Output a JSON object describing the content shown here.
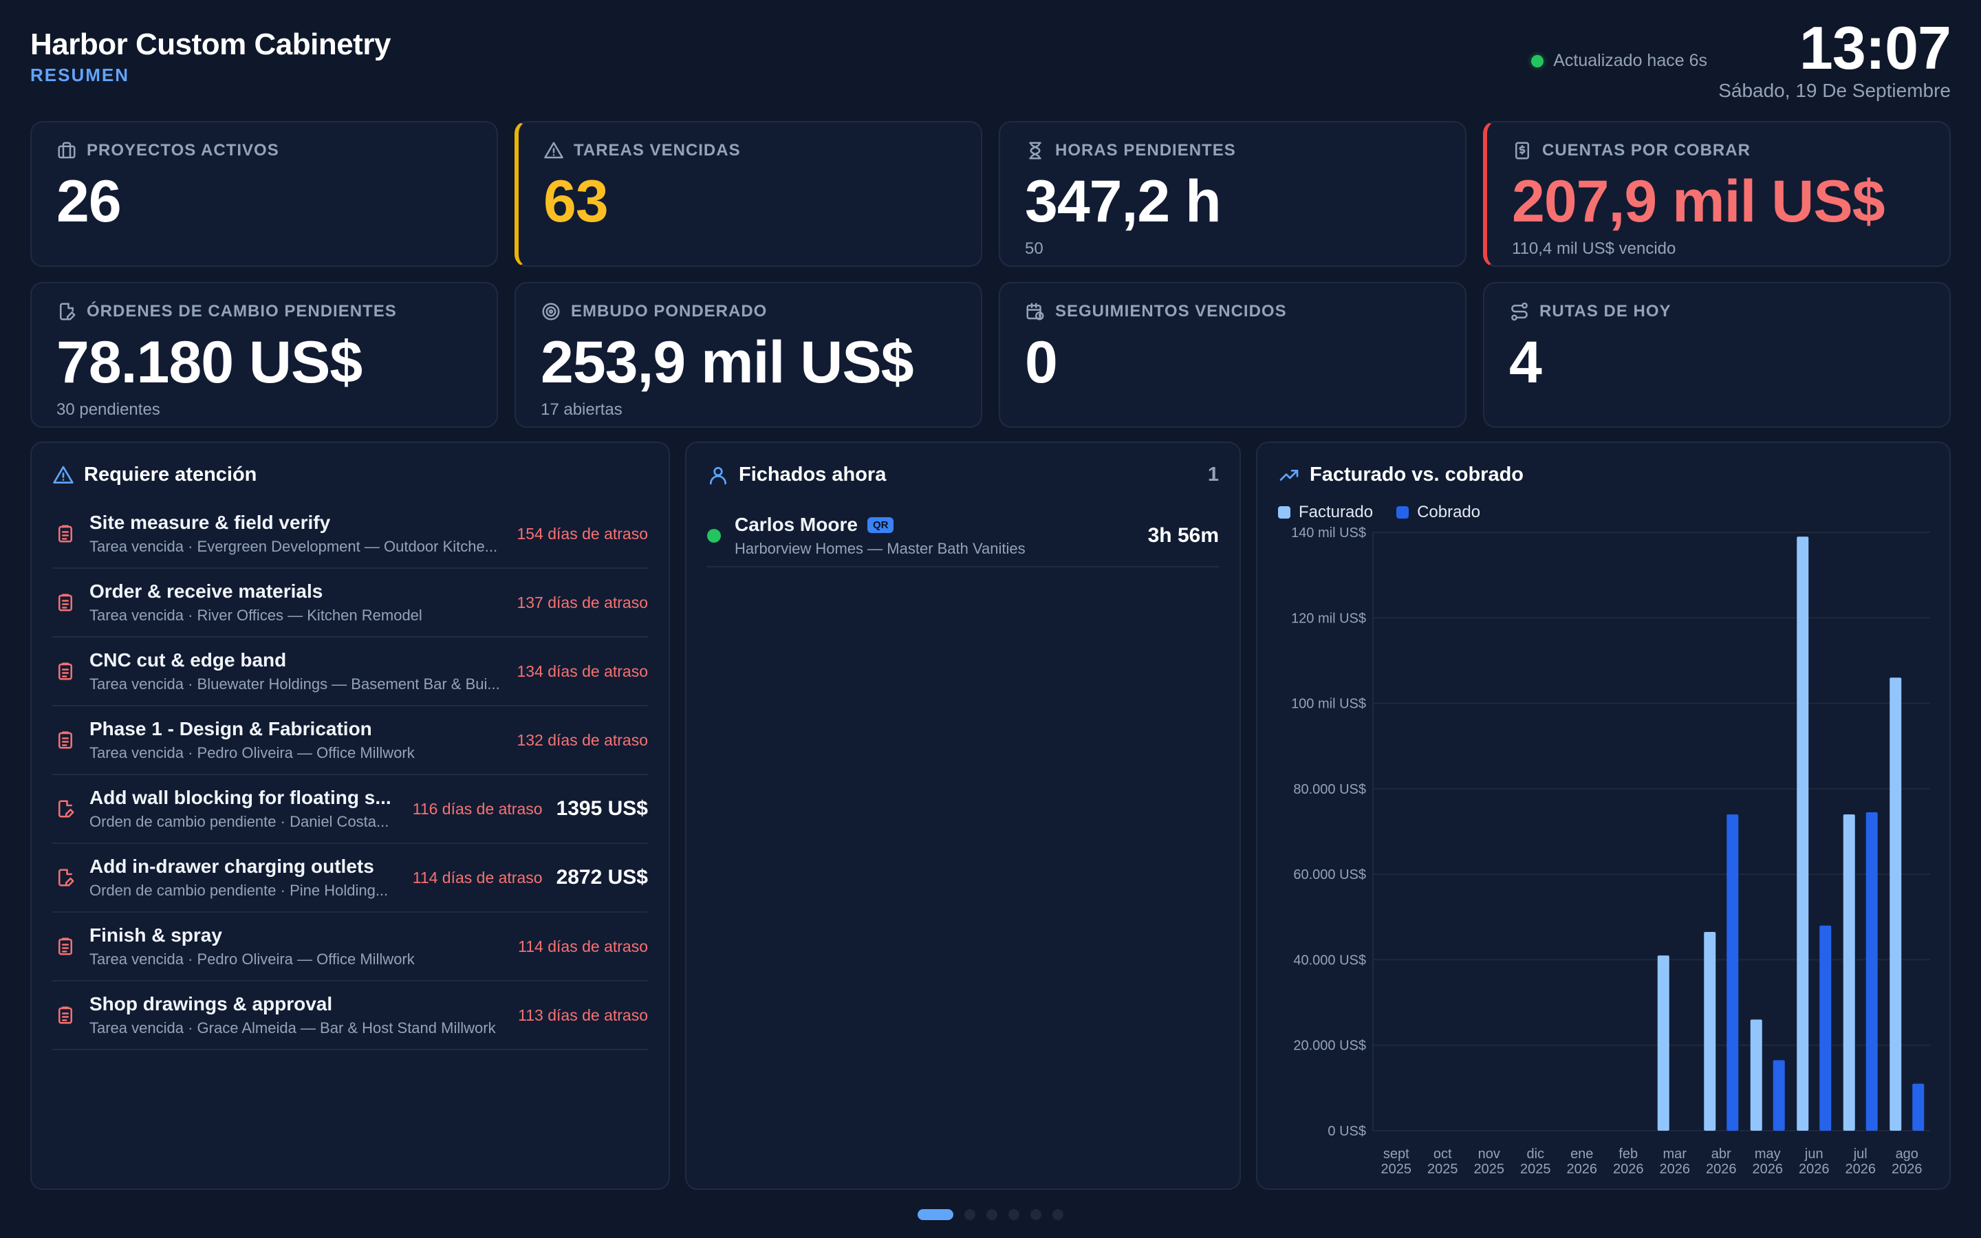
{
  "header": {
    "title": "Harbor Custom Cabinetry",
    "subtitle": "RESUMEN",
    "status": "Actualizado hace 6s",
    "time": "13:07",
    "date": "Sábado, 19 De Septiembre"
  },
  "kpis": [
    {
      "label": "PROYECTOS ACTIVOS",
      "value": "26",
      "sub": "",
      "icon": "briefcase-icon"
    },
    {
      "label": "TAREAS VENCIDAS",
      "value": "63",
      "sub": "",
      "icon": "alert-triangle-icon"
    },
    {
      "label": "HORAS PENDIENTES",
      "value": "347,2 h",
      "sub": "50",
      "icon": "hourglass-icon"
    },
    {
      "label": "CUENTAS POR COBRAR",
      "value": "207,9 mil US$",
      "sub": "110,4 mil US$ vencido",
      "icon": "receipt-dollar-icon"
    },
    {
      "label": "ÓRDENES DE CAMBIO PENDIENTES",
      "value": "78.180 US$",
      "sub": "30 pendientes",
      "icon": "file-edit-icon"
    },
    {
      "label": "EMBUDO PONDERADO",
      "value": "253,9 mil US$",
      "sub": "17 abiertas",
      "icon": "target-icon"
    },
    {
      "label": "SEGUIMIENTOS VENCIDOS",
      "value": "0",
      "sub": "",
      "icon": "calendar-clock-icon"
    },
    {
      "label": "RUTAS DE HOY",
      "value": "4",
      "sub": "",
      "icon": "route-icon"
    }
  ],
  "attention": {
    "title": "Requiere atención",
    "items": [
      {
        "title": "Site measure & field verify",
        "sub": "Tarea vencida · Evergreen Development — Outdoor Kitche...",
        "late": "154 días de atraso",
        "amount": "",
        "kind": "task"
      },
      {
        "title": "Order & receive materials",
        "sub": "Tarea vencida · River Offices — Kitchen Remodel",
        "late": "137 días de atraso",
        "amount": "",
        "kind": "task"
      },
      {
        "title": "CNC cut & edge band",
        "sub": "Tarea vencida · Bluewater Holdings — Basement Bar & Bui...",
        "late": "134 días de atraso",
        "amount": "",
        "kind": "task"
      },
      {
        "title": "Phase 1 - Design & Fabrication",
        "sub": "Tarea vencida · Pedro Oliveira — Office Millwork",
        "late": "132 días de atraso",
        "amount": "",
        "kind": "task"
      },
      {
        "title": "Add wall blocking for floating s...",
        "sub": "Orden de cambio pendiente · Daniel Costa...",
        "late": "116 días de atraso",
        "amount": "1395 US$",
        "kind": "change"
      },
      {
        "title": "Add in-drawer charging outlets",
        "sub": "Orden de cambio pendiente · Pine Holding...",
        "late": "114 días de atraso",
        "amount": "2872 US$",
        "kind": "change"
      },
      {
        "title": "Finish & spray",
        "sub": "Tarea vencida · Pedro Oliveira — Office Millwork",
        "late": "114 días de atraso",
        "amount": "",
        "kind": "task"
      },
      {
        "title": "Shop drawings & approval",
        "sub": "Tarea vencida · Grace Almeida — Bar & Host Stand Millwork",
        "late": "113 días de atraso",
        "amount": "",
        "kind": "task"
      }
    ]
  },
  "clocked": {
    "title": "Fichados ahora",
    "count": "1",
    "items": [
      {
        "name": "Carlos Moore",
        "badge": "QR",
        "sub": "Harborview Homes — Master Bath Vanities",
        "duration": "3h 56m"
      }
    ]
  },
  "chart_panel": {
    "title": "Facturado vs. cobrado"
  },
  "chart_data": {
    "type": "bar",
    "title": "Facturado vs. cobrado",
    "categories": [
      [
        "sept",
        "2025"
      ],
      [
        "oct",
        "2025"
      ],
      [
        "nov",
        "2025"
      ],
      [
        "dic",
        "2025"
      ],
      [
        "ene",
        "2026"
      ],
      [
        "feb",
        "2026"
      ],
      [
        "mar",
        "2026"
      ],
      [
        "abr",
        "2026"
      ],
      [
        "may",
        "2026"
      ],
      [
        "jun",
        "2026"
      ],
      [
        "jul",
        "2026"
      ],
      [
        "ago",
        "2026"
      ]
    ],
    "series": [
      {
        "name": "Facturado",
        "color": "#93c5fd",
        "values": [
          0,
          0,
          0,
          0,
          0,
          0,
          41000,
          46500,
          26000,
          139000,
          74000,
          106000
        ]
      },
      {
        "name": "Cobrado",
        "color": "#2563eb",
        "values": [
          0,
          0,
          0,
          0,
          0,
          0,
          0,
          74000,
          16500,
          48000,
          74500,
          11000
        ]
      }
    ],
    "ylim": [
      0,
      140000
    ],
    "yticks": [
      0,
      20000,
      40000,
      60000,
      80000,
      100000,
      120000,
      140000
    ],
    "ytick_labels": [
      "0 US$",
      "20.000 US$",
      "40.000 US$",
      "60.000 US$",
      "80.000 US$",
      "100 mil US$",
      "120 mil US$",
      "140 mil US$"
    ],
    "grid": true,
    "legend": "top-left"
  },
  "pager": {
    "pages": 6,
    "active": 0
  },
  "colors": {
    "accent": "#60a5fa",
    "warn": "#fbbf24",
    "danger": "#f87171",
    "ok": "#22c55e",
    "bg": "#0f172a",
    "card": "#111c33"
  }
}
